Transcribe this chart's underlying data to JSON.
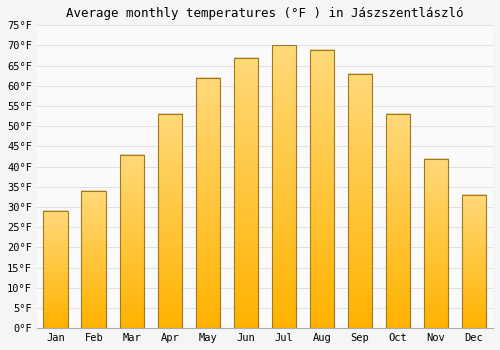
{
  "title": "Average monthly temperatures (°F ) in Jászszentlászló",
  "months": [
    "Jan",
    "Feb",
    "Mar",
    "Apr",
    "May",
    "Jun",
    "Jul",
    "Aug",
    "Sep",
    "Oct",
    "Nov",
    "Dec"
  ],
  "values": [
    29,
    34,
    43,
    53,
    62,
    67,
    70,
    69,
    63,
    53,
    42,
    33
  ],
  "bar_color_bottom": "#FFB300",
  "bar_color_top": "#FFD97A",
  "bar_edge_color": "#A07820",
  "background_color": "#F5F5F5",
  "plot_bg_color": "#FAFAFA",
  "grid_color": "#DDDDDD",
  "ylim": [
    0,
    75
  ],
  "yticks": [
    0,
    5,
    10,
    15,
    20,
    25,
    30,
    35,
    40,
    45,
    50,
    55,
    60,
    65,
    70,
    75
  ],
  "title_fontsize": 9,
  "tick_fontsize": 7.5,
  "bar_width": 0.65
}
